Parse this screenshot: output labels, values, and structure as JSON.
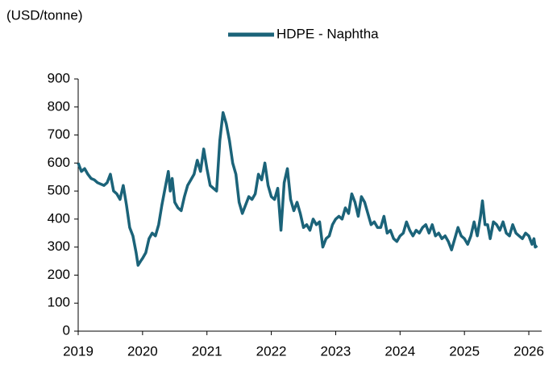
{
  "chart_data": {
    "type": "line",
    "y_axis_label": "(USD/tonne)",
    "x": [
      2019.0,
      2019.05,
      2019.1,
      2019.15,
      2019.2,
      2019.25,
      2019.3,
      2019.35,
      2019.4,
      2019.45,
      2019.5,
      2019.55,
      2019.6,
      2019.65,
      2019.7,
      2019.75,
      2019.8,
      2019.85,
      2019.9,
      2019.93,
      2019.97,
      2020.0,
      2020.05,
      2020.1,
      2020.15,
      2020.2,
      2020.25,
      2020.3,
      2020.35,
      2020.4,
      2020.43,
      2020.46,
      2020.5,
      2020.55,
      2020.6,
      2020.65,
      2020.7,
      2020.75,
      2020.8,
      2020.85,
      2020.9,
      2020.95,
      2021.0,
      2021.05,
      2021.1,
      2021.15,
      2021.2,
      2021.25,
      2021.3,
      2021.35,
      2021.4,
      2021.45,
      2021.5,
      2021.55,
      2021.6,
      2021.65,
      2021.7,
      2021.75,
      2021.8,
      2021.85,
      2021.9,
      2021.95,
      2022.0,
      2022.05,
      2022.1,
      2022.15,
      2022.2,
      2022.25,
      2022.3,
      2022.35,
      2022.4,
      2022.45,
      2022.5,
      2022.55,
      2022.6,
      2022.65,
      2022.7,
      2022.75,
      2022.8,
      2022.85,
      2022.9,
      2022.95,
      2023.0,
      2023.05,
      2023.1,
      2023.15,
      2023.2,
      2023.25,
      2023.3,
      2023.35,
      2023.4,
      2023.45,
      2023.5,
      2023.55,
      2023.6,
      2023.65,
      2023.7,
      2023.75,
      2023.8,
      2023.85,
      2023.9,
      2023.95,
      2024.0,
      2024.05,
      2024.1,
      2024.15,
      2024.2,
      2024.25,
      2024.3,
      2024.35,
      2024.4,
      2024.45,
      2024.5,
      2024.55,
      2024.6,
      2024.65,
      2024.7,
      2024.75,
      2024.8,
      2024.85,
      2024.9,
      2024.95,
      2025.0,
      2025.05,
      2025.1,
      2025.15,
      2025.2,
      2025.25,
      2025.28,
      2025.32,
      2025.36,
      2025.4,
      2025.45,
      2025.5,
      2025.55,
      2025.6,
      2025.65,
      2025.7,
      2025.75,
      2025.8,
      2025.85,
      2025.9,
      2025.95,
      2026.0,
      2026.05,
      2026.08,
      2026.1,
      2026.13
    ],
    "series": [
      {
        "name": "HDPE - Naphtha",
        "color": "#1b6379",
        "values": [
          600,
          570,
          580,
          560,
          545,
          540,
          530,
          525,
          520,
          530,
          560,
          500,
          490,
          470,
          520,
          450,
          370,
          340,
          280,
          235,
          250,
          260,
          280,
          330,
          350,
          340,
          380,
          450,
          510,
          570,
          500,
          545,
          460,
          440,
          430,
          480,
          520,
          540,
          560,
          610,
          570,
          650,
          580,
          520,
          510,
          500,
          680,
          780,
          740,
          680,
          600,
          560,
          460,
          420,
          450,
          480,
          470,
          490,
          560,
          540,
          600,
          520,
          480,
          470,
          510,
          360,
          530,
          580,
          470,
          430,
          460,
          420,
          370,
          380,
          360,
          400,
          380,
          390,
          300,
          330,
          340,
          380,
          400,
          410,
          400,
          440,
          420,
          490,
          460,
          410,
          480,
          460,
          420,
          380,
          390,
          370,
          370,
          410,
          350,
          360,
          330,
          320,
          340,
          350,
          390,
          360,
          340,
          360,
          350,
          370,
          380,
          350,
          380,
          340,
          350,
          330,
          340,
          320,
          290,
          330,
          370,
          340,
          330,
          310,
          340,
          390,
          340,
          410,
          465,
          380,
          380,
          330,
          390,
          380,
          360,
          390,
          350,
          340,
          380,
          350,
          340,
          330,
          350,
          340,
          310,
          330,
          300,
          305
        ]
      }
    ],
    "xlim": [
      2019,
      2026.2
    ],
    "xticks": [
      2019,
      2020,
      2021,
      2022,
      2023,
      2024,
      2025,
      2026
    ],
    "ylim": [
      0,
      900
    ],
    "yticks": [
      0,
      100,
      200,
      300,
      400,
      500,
      600,
      700,
      800,
      900
    ],
    "grid": false,
    "legend": "top"
  }
}
